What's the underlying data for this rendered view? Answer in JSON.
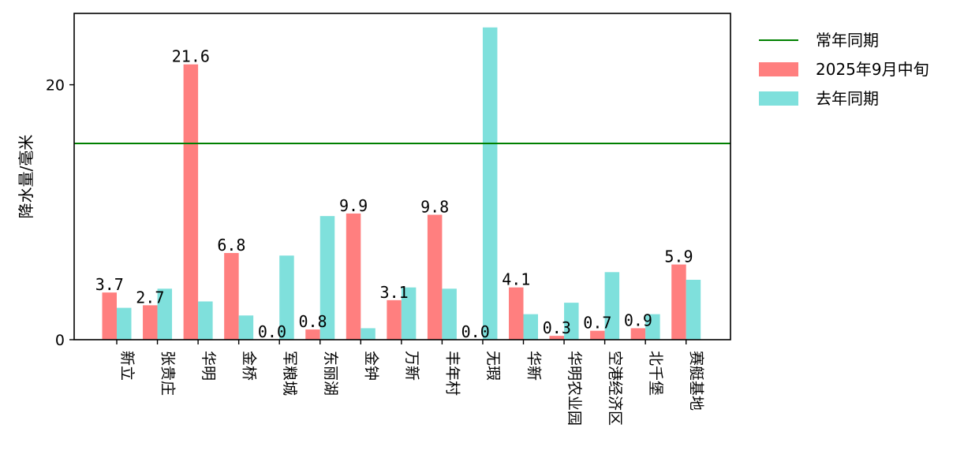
{
  "chart_data": {
    "type": "bar",
    "title": "",
    "xlabel": "",
    "ylabel": "降水量/毫米",
    "categories": [
      "新立",
      "张贵庄",
      "华明",
      "金桥",
      "军粮城",
      "东丽湖",
      "金钟",
      "万新",
      "丰年村",
      "无瑕",
      "华新",
      "华明农业园",
      "空港经济区",
      "北千堡",
      "赛艇基地"
    ],
    "series": [
      {
        "name": "2025年9月中旬",
        "color": "#ff7f7f",
        "values": [
          3.7,
          2.7,
          21.6,
          6.8,
          0.0,
          0.8,
          9.9,
          3.1,
          9.8,
          0.0,
          4.1,
          0.3,
          0.7,
          0.9,
          5.9
        ],
        "labels": [
          "3.7",
          "2.7",
          "21.6",
          "6.8",
          "0.0",
          "0.8",
          "9.9",
          "3.1",
          "9.8",
          "0.0",
          "4.1",
          "0.3",
          "0.7",
          "0.9",
          "5.9"
        ]
      },
      {
        "name": "去年同期",
        "color": "#7fe0dc",
        "values": [
          2.5,
          4.0,
          3.0,
          1.9,
          6.6,
          9.7,
          0.9,
          4.1,
          4.0,
          24.5,
          2.0,
          2.9,
          5.3,
          2.0,
          4.7
        ]
      }
    ],
    "reference_lines": [
      {
        "name": "常年同期",
        "value": 15.4,
        "color": "#008000"
      }
    ],
    "ylim": [
      0,
      25.6
    ],
    "yticks": [
      0,
      20
    ],
    "ytick_labels": [
      "0",
      "20"
    ],
    "grid": false,
    "legend_position": "outside-top-right",
    "legend": [
      "常年同期",
      "2025年9月中旬",
      "去年同期"
    ]
  }
}
